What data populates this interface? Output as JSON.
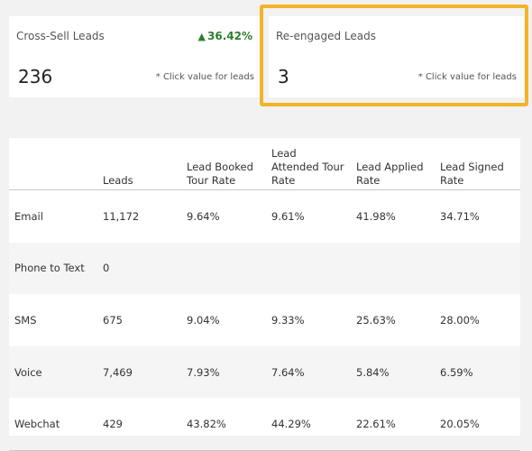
{
  "cards": {
    "cross_sell": {
      "title": "Cross-Sell Leads",
      "change": "36.42%",
      "change_icon": "triangle-up-icon",
      "value": "236",
      "hint": "* Click value for leads"
    },
    "reengaged": {
      "title": "Re-engaged Leads",
      "value": "3",
      "hint": "* Click value for leads"
    }
  },
  "table": {
    "headers": [
      "",
      "Leads",
      "Lead Booked Tour Rate",
      "Lead Attended Tour Rate",
      "Lead Applied Rate",
      "Lead Signed Rate"
    ],
    "rows": [
      {
        "channel": "Email",
        "leads": "11,172",
        "booked": "9.64%",
        "attended": "9.61%",
        "applied": "41.98%",
        "signed": "34.71%"
      },
      {
        "channel": "Phone to Text",
        "leads": "0",
        "booked": "",
        "attended": "",
        "applied": "",
        "signed": ""
      },
      {
        "channel": "SMS",
        "leads": "675",
        "booked": "9.04%",
        "attended": "9.33%",
        "applied": "25.63%",
        "signed": "28.00%"
      },
      {
        "channel": "Voice",
        "leads": "7,469",
        "booked": "7.93%",
        "attended": "7.64%",
        "applied": "5.84%",
        "signed": "6.59%"
      },
      {
        "channel": "Webchat",
        "leads": "429",
        "booked": "43.82%",
        "attended": "44.29%",
        "applied": "22.61%",
        "signed": "20.05%"
      }
    ]
  },
  "colors": {
    "highlight": "#f4b427",
    "positive": "#2e7d32"
  }
}
